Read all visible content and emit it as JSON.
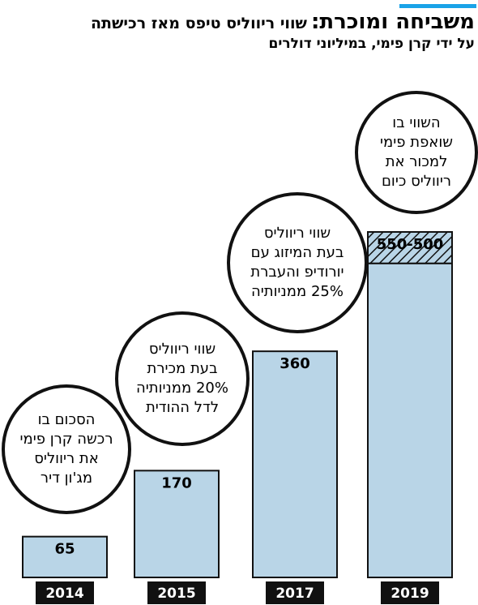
{
  "chart_data": {
    "type": "bar",
    "title": "משביחה ומוכרת:",
    "subtitle": "שווי ריווליס טיפס מאז רכישתה",
    "note": "על ידי קרן פימי, במיליוני דולרים",
    "categories": [
      "2014",
      "2015",
      "2017",
      "2019"
    ],
    "values": [
      65,
      170,
      360,
      500
    ],
    "high_values": [
      null,
      null,
      null,
      550
    ],
    "value_labels": [
      "65",
      "170",
      "360",
      "550-500"
    ],
    "color": "#b9d5e7",
    "ylim": [
      0,
      550
    ],
    "annotations": [
      [
        "הסכום בו",
        "רכשה קרן פימי",
        "את ריווליס",
        "מג'ון דיר"
      ],
      [
        "שווי ריווליס",
        "בעת מכירת",
        "20% ממניותיה",
        "לדל ההודית"
      ],
      [
        "שווי ריווליס",
        "בעת המיזוג עם",
        "יורודיפ והעברת",
        "25% ממניותיה"
      ],
      [
        "השווי בו",
        "שואפת פימי",
        "למכור את",
        "ריווליס כיום"
      ]
    ]
  }
}
